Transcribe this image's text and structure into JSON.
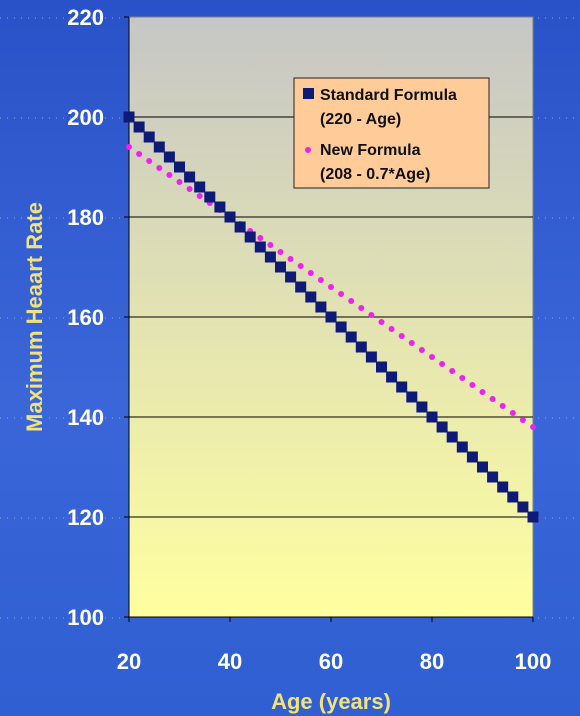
{
  "chart_data": {
    "type": "scatter",
    "title": "",
    "xlabel": "Age (years)",
    "ylabel": "Maximum Heaart Rate",
    "xlim": [
      20,
      100
    ],
    "ylim": [
      100,
      220
    ],
    "x_ticks": [
      "20",
      "40",
      "60",
      "80",
      "100"
    ],
    "y_ticks": [
      "100",
      "120",
      "140",
      "160",
      "180",
      "200",
      "220"
    ],
    "grid": "horizontal",
    "legend_position": "top-right",
    "series": [
      {
        "name": "Standard Formula (220 - Age)",
        "legend_lines": [
          "Standard Formula",
          "(220 - Age)"
        ],
        "marker": "square",
        "color": "#0d1a78",
        "x": [
          20,
          22,
          24,
          26,
          28,
          30,
          32,
          34,
          36,
          38,
          40,
          42,
          44,
          46,
          48,
          50,
          52,
          54,
          56,
          58,
          60,
          62,
          64,
          66,
          68,
          70,
          72,
          74,
          76,
          78,
          80,
          82,
          84,
          86,
          88,
          90,
          92,
          94,
          96,
          98,
          100
        ],
        "y": [
          200,
          198,
          196,
          194,
          192,
          190,
          188,
          186,
          184,
          182,
          180,
          178,
          176,
          174,
          172,
          170,
          168,
          166,
          164,
          162,
          160,
          158,
          156,
          154,
          152,
          150,
          148,
          146,
          144,
          142,
          140,
          138,
          136,
          134,
          132,
          130,
          128,
          126,
          124,
          122,
          120
        ]
      },
      {
        "name": "New Formula (208 - 0.7*Age)",
        "legend_lines": [
          "New Formula",
          "(208 - 0.7*Age)"
        ],
        "marker": "circle",
        "color": "#ee22ee",
        "x": [
          20,
          22,
          24,
          26,
          28,
          30,
          32,
          34,
          36,
          38,
          40,
          42,
          44,
          46,
          48,
          50,
          52,
          54,
          56,
          58,
          60,
          62,
          64,
          66,
          68,
          70,
          72,
          74,
          76,
          78,
          80,
          82,
          84,
          86,
          88,
          90,
          92,
          94,
          96,
          98,
          100
        ],
        "y": [
          194,
          192.6,
          191.2,
          189.8,
          188.4,
          187,
          185.6,
          184.2,
          182.8,
          181.4,
          180,
          178.6,
          177.2,
          175.8,
          174.4,
          173,
          171.6,
          170.2,
          168.8,
          167.4,
          166,
          164.6,
          163.2,
          161.8,
          160.4,
          159,
          157.6,
          156.2,
          154.8,
          153.4,
          152,
          150.6,
          149.2,
          147.8,
          146.4,
          145,
          143.6,
          142.2,
          140.8,
          139.4,
          138
        ]
      }
    ],
    "colors": {
      "plot_top": "#c6c6c6",
      "plot_bottom": "#ffffa0",
      "tick_label": "#ffffff",
      "axis_title": "#f2e27a",
      "legend_bg": "#ffcc99"
    }
  }
}
